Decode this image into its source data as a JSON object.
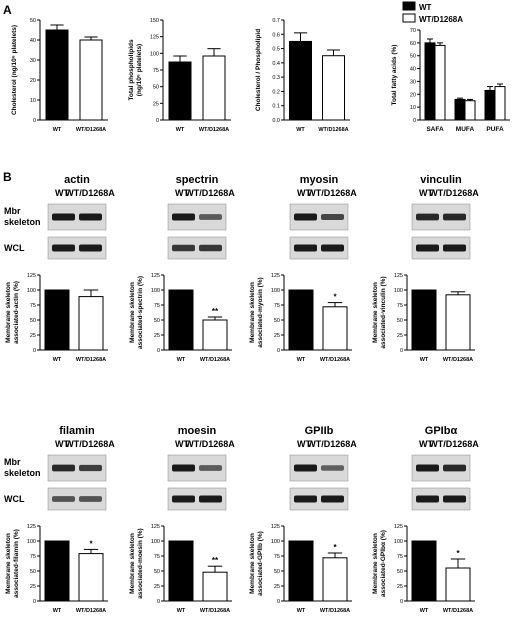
{
  "panel_labels": {
    "a": "A",
    "b": "B"
  },
  "legend": {
    "wt": "WT",
    "mut": "WT/D1268A"
  },
  "blot_labels": {
    "mbr": "Mbr",
    "skeleton": "skeleton",
    "wcl": "WCL"
  },
  "protein_names": {
    "actin": "actin",
    "spectrin": "spectrin",
    "myosin": "myosin",
    "vinculin": "vinculin",
    "filamin": "filamin",
    "moesin": "moesin",
    "gpiib": "GPIIb",
    "gpib": "GPIbα"
  },
  "chart_data": [
    {
      "id": "cholesterol",
      "type": "bar",
      "categories": [
        "WT",
        "WT/D1268A"
      ],
      "values": [
        45,
        40
      ],
      "errors": [
        2.5,
        1.5
      ],
      "ylim": [
        0,
        50
      ],
      "ticks": [
        0,
        10,
        20,
        30,
        40,
        50
      ],
      "ylabel": "Cholesterol (ng/10⁶ platelets)",
      "ylabel_lines": [
        "Cholesterol (ng/10⁶ platelets)"
      ],
      "sig": ""
    },
    {
      "id": "phospholipids",
      "type": "bar",
      "categories": [
        "WT",
        "WT/D1268A"
      ],
      "values": [
        87,
        96
      ],
      "errors": [
        9,
        11
      ],
      "ylim": [
        0,
        150
      ],
      "ticks": [
        0,
        25,
        50,
        75,
        100,
        125,
        150
      ],
      "ylabel": "Total phospholipids (ng/10⁶ platelets)",
      "ylabel_lines": [
        "Total phospholipids",
        "(ng/10⁶ platelets)"
      ],
      "sig": ""
    },
    {
      "id": "ratio",
      "type": "bar",
      "categories": [
        "WT",
        "WT/D1268A"
      ],
      "values": [
        0.55,
        0.45
      ],
      "errors": [
        0.06,
        0.04
      ],
      "ylim": [
        0,
        0.7
      ],
      "ticks": [
        0.0,
        0.1,
        0.2,
        0.3,
        0.4,
        0.5,
        0.6,
        0.7
      ],
      "ylabel": "Cholesterol / Phospholipid",
      "ylabel_lines": [
        "Cholesterol / Phospholipid"
      ],
      "sig": ""
    },
    {
      "id": "fatty",
      "type": "bar",
      "categories": [
        "SAFA",
        "MUFA",
        "PUFA"
      ],
      "series": [
        {
          "name": "WT",
          "values": [
            60,
            16,
            23
          ],
          "errors": [
            3,
            1,
            3
          ]
        },
        {
          "name": "WT/D1268A",
          "values": [
            58,
            15,
            26
          ],
          "errors": [
            2,
            1,
            2
          ]
        }
      ],
      "ylim": [
        0,
        70
      ],
      "ticks": [
        0,
        10,
        20,
        30,
        40,
        50,
        60,
        70
      ],
      "ylabel": "Total fatty acids (%)",
      "ylabel_lines": [
        "Total fatty acids (%)"
      ]
    },
    {
      "id": "actin",
      "type": "bar",
      "categories": [
        "WT",
        "WT/D1268A"
      ],
      "values": [
        100,
        89
      ],
      "errors": [
        0,
        11
      ],
      "ylim": [
        0,
        125
      ],
      "ticks": [
        0,
        25,
        50,
        75,
        100,
        125
      ],
      "ylabel": "Membrane skeleton associated-actin (%)",
      "ylabel_lines": [
        "Membrane skeleton",
        "associated-actin (%)"
      ],
      "sig": ""
    },
    {
      "id": "spectrin",
      "type": "bar",
      "categories": [
        "WT",
        "WT/D1268A"
      ],
      "values": [
        100,
        50
      ],
      "errors": [
        0,
        5
      ],
      "ylim": [
        0,
        125
      ],
      "ticks": [
        0,
        25,
        50,
        75,
        100,
        125
      ],
      "ylabel": "Membrane skeleton associated-spectrin (%)",
      "ylabel_lines": [
        "Membrane skeleton",
        "associated-spectrin (%)"
      ],
      "sig": "**"
    },
    {
      "id": "myosin",
      "type": "bar",
      "categories": [
        "WT",
        "WT/D1268A"
      ],
      "values": [
        100,
        72
      ],
      "errors": [
        0,
        7
      ],
      "ylim": [
        0,
        125
      ],
      "ticks": [
        0,
        25,
        50,
        75,
        100,
        125
      ],
      "ylabel": "Membrane skeleton associated-myosin (%)",
      "ylabel_lines": [
        "Membrane skeleton",
        "associated-myosin (%)"
      ],
      "sig": "*"
    },
    {
      "id": "vinculin",
      "type": "bar",
      "categories": [
        "WT",
        "WT/D1268A"
      ],
      "values": [
        100,
        92
      ],
      "errors": [
        0,
        5
      ],
      "ylim": [
        0,
        125
      ],
      "ticks": [
        0,
        25,
        50,
        75,
        100,
        125
      ],
      "ylabel": "Membrane skeleton associated-vinculin (%)",
      "ylabel_lines": [
        "Membrane skeleton",
        "associated-vinculin (%)"
      ],
      "sig": ""
    },
    {
      "id": "filamin",
      "type": "bar",
      "categories": [
        "WT",
        "WT/D1268A"
      ],
      "values": [
        100,
        79
      ],
      "errors": [
        0,
        7
      ],
      "ylim": [
        0,
        125
      ],
      "ticks": [
        0,
        25,
        50,
        75,
        100,
        125
      ],
      "ylabel": "Membrane skeleton associated-filamin (%)",
      "ylabel_lines": [
        "Membrane skeleton",
        "associated-filamin (%)"
      ],
      "sig": "*"
    },
    {
      "id": "moesin",
      "type": "bar",
      "categories": [
        "WT",
        "WT/D1268A"
      ],
      "values": [
        100,
        48
      ],
      "errors": [
        0,
        10
      ],
      "ylim": [
        0,
        125
      ],
      "ticks": [
        0,
        25,
        50,
        75,
        100,
        125
      ],
      "ylabel": "Membrane skeleton associated-moesin (%)",
      "ylabel_lines": [
        "Membrane skeleton",
        "associated-moesin (%)"
      ],
      "sig": "**"
    },
    {
      "id": "gpiib",
      "type": "bar",
      "categories": [
        "WT",
        "WT/D1268A"
      ],
      "values": [
        100,
        72
      ],
      "errors": [
        0,
        8
      ],
      "ylim": [
        0,
        125
      ],
      "ticks": [
        0,
        25,
        50,
        75,
        100,
        125
      ],
      "ylabel": "Membrane skeleton associated-GPIIb (%)",
      "ylabel_lines": [
        "Membrane skeleton",
        "associated-GPIIb (%)"
      ],
      "sig": "*"
    },
    {
      "id": "gpib",
      "type": "bar",
      "categories": [
        "WT",
        "WT/D1268A"
      ],
      "values": [
        100,
        55
      ],
      "errors": [
        0,
        15
      ],
      "ylim": [
        0,
        125
      ],
      "ticks": [
        0,
        25,
        50,
        75,
        100,
        125
      ],
      "ylabel": "Membrane skeleton associated-GPIbα (%)",
      "ylabel_lines": [
        "Membrane skeleton",
        "associated-GPIbα (%)"
      ],
      "sig": "*"
    }
  ],
  "blots": {
    "actin": {
      "mbr": [
        1.0,
        1.0
      ],
      "wcl": [
        1.0,
        1.0
      ]
    },
    "spectrin": {
      "mbr": [
        1.0,
        0.55
      ],
      "wcl": [
        0.8,
        0.8
      ]
    },
    "myosin": {
      "mbr": [
        1.0,
        0.7
      ],
      "wcl": [
        1.0,
        1.0
      ]
    },
    "vinculin": {
      "mbr": [
        0.9,
        0.9
      ],
      "wcl": [
        1.0,
        1.0
      ]
    },
    "filamin": {
      "mbr": [
        0.9,
        0.75
      ],
      "wcl": [
        0.6,
        0.6
      ]
    },
    "moesin": {
      "mbr": [
        1.0,
        0.55
      ],
      "wcl": [
        1.0,
        1.0
      ]
    },
    "gpiib": {
      "mbr": [
        1.0,
        0.5
      ],
      "wcl": [
        1.0,
        1.0
      ]
    },
    "gpib": {
      "mbr": [
        1.0,
        0.9
      ],
      "wcl": [
        1.0,
        1.0
      ]
    }
  },
  "colors": {
    "wt_fill": "#000000",
    "mut_fill": "#ffffff",
    "axis": "#000000",
    "blot_bg": "#d9d9d9",
    "band": "#1a1a1a"
  }
}
